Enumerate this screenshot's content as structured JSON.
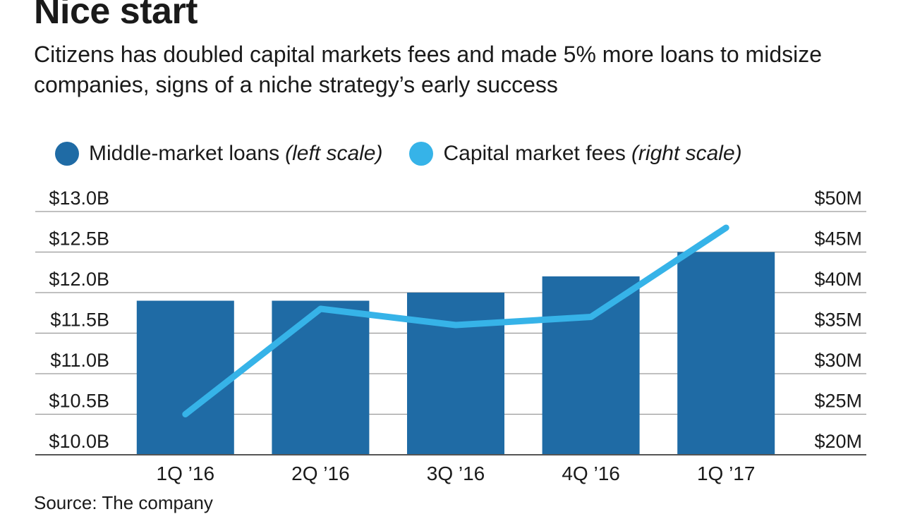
{
  "title": "Nice start",
  "subtitle": "Citizens has doubled capital markets fees and made 5% more loans to midsize companies, signs of a niche strategy’s early success",
  "legend": [
    {
      "label": "Middle-market loans",
      "note": "(left scale)",
      "color": "#1f6ba5"
    },
    {
      "label": "Capital market fees",
      "note": "(right scale)",
      "color": "#36b3e8"
    }
  ],
  "source": "Source: The company",
  "chart_data": {
    "type": "bar",
    "categories": [
      "1Q ’16",
      "2Q ’16",
      "3Q ’16",
      "4Q ’16",
      "1Q ’17"
    ],
    "series": [
      {
        "name": "Middle-market loans",
        "type": "bar",
        "axis": "left",
        "unit": "$B",
        "values": [
          11.9,
          11.9,
          12.0,
          12.2,
          12.5
        ],
        "color": "#1f6ba5"
      },
      {
        "name": "Capital market fees",
        "type": "line",
        "axis": "right",
        "unit": "$M",
        "values": [
          25,
          38,
          36,
          37,
          48
        ],
        "color": "#36b3e8"
      }
    ],
    "left_axis": {
      "ylim": [
        10.0,
        13.0
      ],
      "ticks": [
        10.0,
        10.5,
        11.0,
        11.5,
        12.0,
        12.5,
        13.0
      ],
      "tick_labels": [
        "$10.0B",
        "$10.5B",
        "$11.0B",
        "$11.5B",
        "$12.0B",
        "$12.5B",
        "$13.0B"
      ]
    },
    "right_axis": {
      "ylim": [
        20,
        50
      ],
      "ticks": [
        20,
        25,
        30,
        35,
        40,
        45,
        50
      ],
      "tick_labels": [
        "$20M",
        "$25M",
        "$30M",
        "$35M",
        "$40M",
        "$45M",
        "$50M"
      ]
    },
    "grid": true,
    "legend_position": "top"
  }
}
